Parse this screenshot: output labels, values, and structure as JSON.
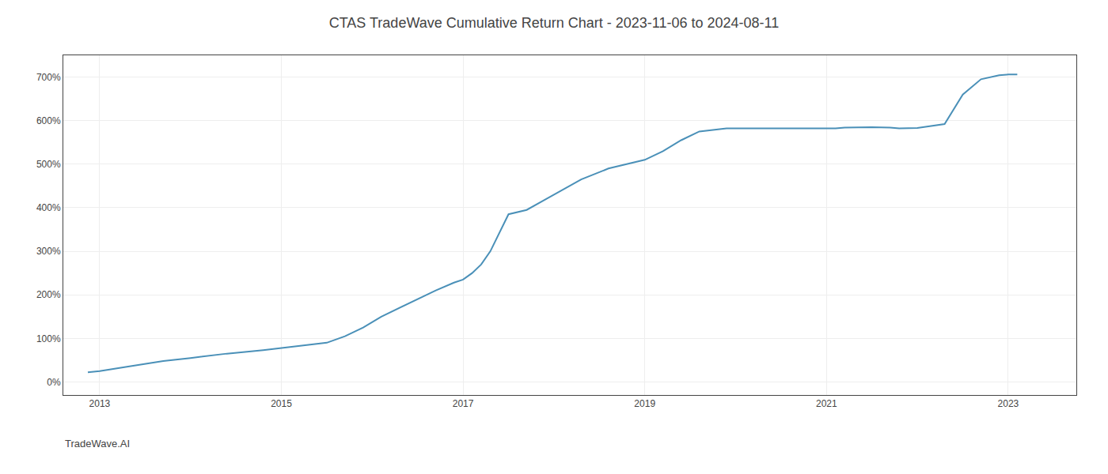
{
  "chart_data": {
    "type": "line",
    "title": "CTAS TradeWave Cumulative Return Chart - 2023-11-06 to 2024-08-11",
    "annotations": [
      {
        "text": "TradeWave.AI"
      }
    ],
    "color": "#4a90b8",
    "grid": true,
    "xlim": [
      2012.6,
      2023.75
    ],
    "ylim": [
      -30,
      750
    ],
    "xticks": [
      2013,
      2015,
      2017,
      2019,
      2021,
      2023
    ],
    "yticks": [
      {
        "value": 0,
        "label": "0%"
      },
      {
        "value": 100,
        "label": "100%"
      },
      {
        "value": 200,
        "label": "200%"
      },
      {
        "value": 300,
        "label": "300%"
      },
      {
        "value": 400,
        "label": "400%"
      },
      {
        "value": 500,
        "label": "500%"
      },
      {
        "value": 600,
        "label": "600%"
      },
      {
        "value": 700,
        "label": "700%"
      }
    ],
    "x": [
      2012.87,
      2013.0,
      2013.3,
      2013.7,
      2014.0,
      2014.4,
      2014.8,
      2015.0,
      2015.3,
      2015.5,
      2015.7,
      2015.9,
      2016.1,
      2016.3,
      2016.5,
      2016.7,
      2016.9,
      2017.0,
      2017.1,
      2017.2,
      2017.3,
      2017.5,
      2017.7,
      2018.0,
      2018.3,
      2018.6,
      2018.9,
      2019.0,
      2019.2,
      2019.4,
      2019.6,
      2019.8,
      2019.9,
      2020.0,
      2020.2,
      2020.5,
      2020.8,
      2021.0,
      2021.1,
      2021.2,
      2021.5,
      2021.7,
      2021.8,
      2022.0,
      2022.3,
      2022.5,
      2022.7,
      2022.9,
      2023.0,
      2023.1
    ],
    "values": [
      22,
      25,
      35,
      48,
      55,
      65,
      73,
      78,
      85,
      90,
      105,
      125,
      150,
      170,
      190,
      210,
      228,
      235,
      250,
      270,
      300,
      385,
      395,
      430,
      465,
      490,
      505,
      510,
      530,
      555,
      575,
      580,
      582,
      582,
      582,
      582,
      581,
      581,
      582,
      584,
      585,
      584,
      582,
      583,
      592,
      660,
      695,
      704,
      706,
      706
    ]
  }
}
